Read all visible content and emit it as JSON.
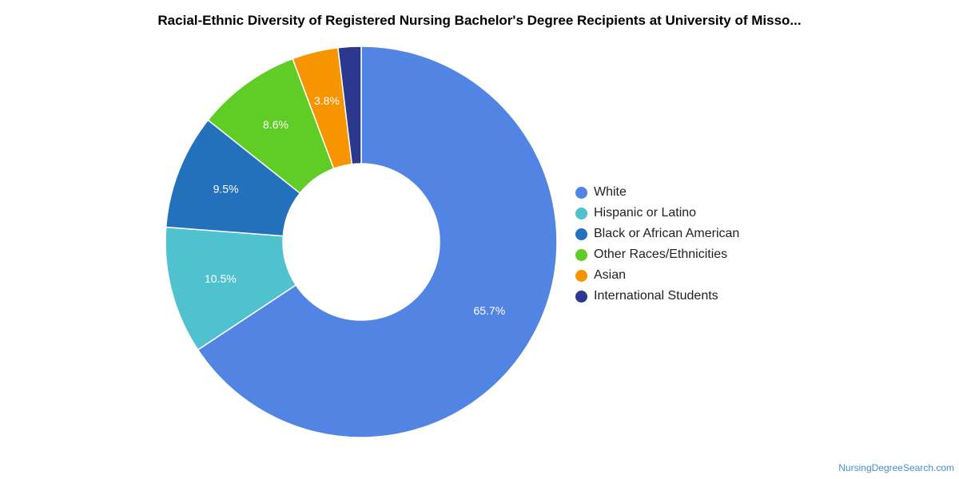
{
  "chart_data": {
    "type": "pie",
    "title": "Racial-Ethnic Diversity of Registered Nursing Bachelor's Degree Recipients at University of Misso...",
    "donut": true,
    "legend_position": "right",
    "categories": [
      "White",
      "Hispanic or Latino",
      "Black or African American",
      "Other Races/Ethnicities",
      "Asian",
      "International Students"
    ],
    "values": [
      65.7,
      10.5,
      9.5,
      8.6,
      3.8,
      1.9
    ],
    "labels": [
      "65.7%",
      "10.5%",
      "9.5%",
      "8.6%",
      "3.8%",
      ""
    ],
    "colors": [
      "#5285e3",
      "#4fc1cf",
      "#2371bd",
      "#5fcd25",
      "#f79500",
      "#2b388e"
    ]
  },
  "source": "NursingDegreeSearch.com"
}
